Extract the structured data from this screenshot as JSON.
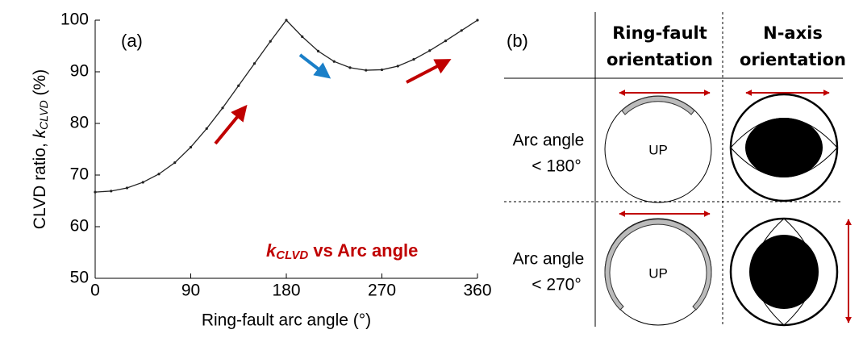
{
  "chart_data": {
    "type": "line",
    "title": "(a)",
    "xlabel": "Ring-fault arc angle (°)",
    "ylabel": {
      "text": "CLVD ratio, ",
      "symbol": "k",
      "subscript": "CLVD",
      "unit": " (%)"
    },
    "annotation": {
      "symbol": "k",
      "subscript": "CLVD",
      "text": " vs Arc angle",
      "color": "#c00000"
    },
    "x": [
      0,
      15,
      30,
      45,
      60,
      75,
      90,
      105,
      120,
      135,
      150,
      165,
      180,
      195,
      210,
      225,
      240,
      255,
      270,
      285,
      300,
      315,
      330,
      345,
      360
    ],
    "series": [
      {
        "color": "#222222",
        "values": [
          66.7,
          66.9,
          67.5,
          68.6,
          70.2,
          72.4,
          75.4,
          79.0,
          83.0,
          87.3,
          91.6,
          95.9,
          100,
          96.8,
          94.0,
          92.0,
          90.8,
          90.3,
          90.4,
          91.1,
          92.4,
          94.1,
          96.0,
          98.0,
          100
        ]
      }
    ],
    "xlim": [
      0,
      360
    ],
    "xticks": [
      0,
      90,
      180,
      270,
      360
    ],
    "ylim": [
      50,
      100
    ],
    "yticks": [
      50,
      60,
      70,
      80,
      90,
      100
    ]
  },
  "panel_b": {
    "label": "(b)",
    "columns": [
      [
        "Ring-fault",
        "orientation"
      ],
      [
        "N-axis",
        "orientation"
      ]
    ],
    "rows": [
      [
        "Arc angle",
        "< 180°"
      ],
      [
        "Arc angle",
        "< 270°"
      ]
    ],
    "circle_label": "UP"
  }
}
